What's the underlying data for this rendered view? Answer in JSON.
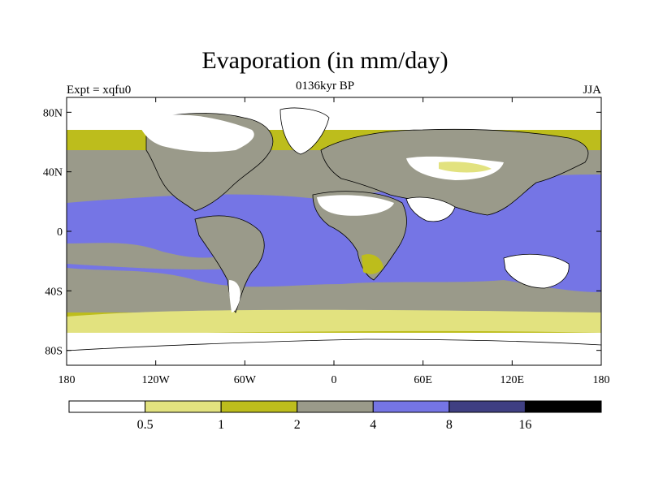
{
  "header": {
    "title": "Evaporation (in mm/day)",
    "left_label": "Expt = xqfu0",
    "center_label": "0136kyr BP",
    "right_label": "JJA"
  },
  "axes": {
    "x_ticks": [
      "180",
      "120W",
      "60W",
      "0",
      "60E",
      "120E",
      "180"
    ],
    "x_values": [
      -180,
      -120,
      -60,
      0,
      60,
      120,
      180
    ],
    "y_ticks": [
      "80N",
      "40N",
      "0",
      "40S",
      "80S"
    ],
    "y_values": [
      80,
      40,
      0,
      -40,
      -80
    ]
  },
  "colorbar": {
    "levels": [
      "0.5",
      "1",
      "2",
      "4",
      "8",
      "16"
    ],
    "colors": [
      "#ffffff",
      "#e2e27f",
      "#bdbd1c",
      "#9a9a8a",
      "#7575e5",
      "#3f3f82",
      "#000000"
    ]
  },
  "colors": {
    "land_outline": "#000000",
    "frame": "#000000"
  }
}
